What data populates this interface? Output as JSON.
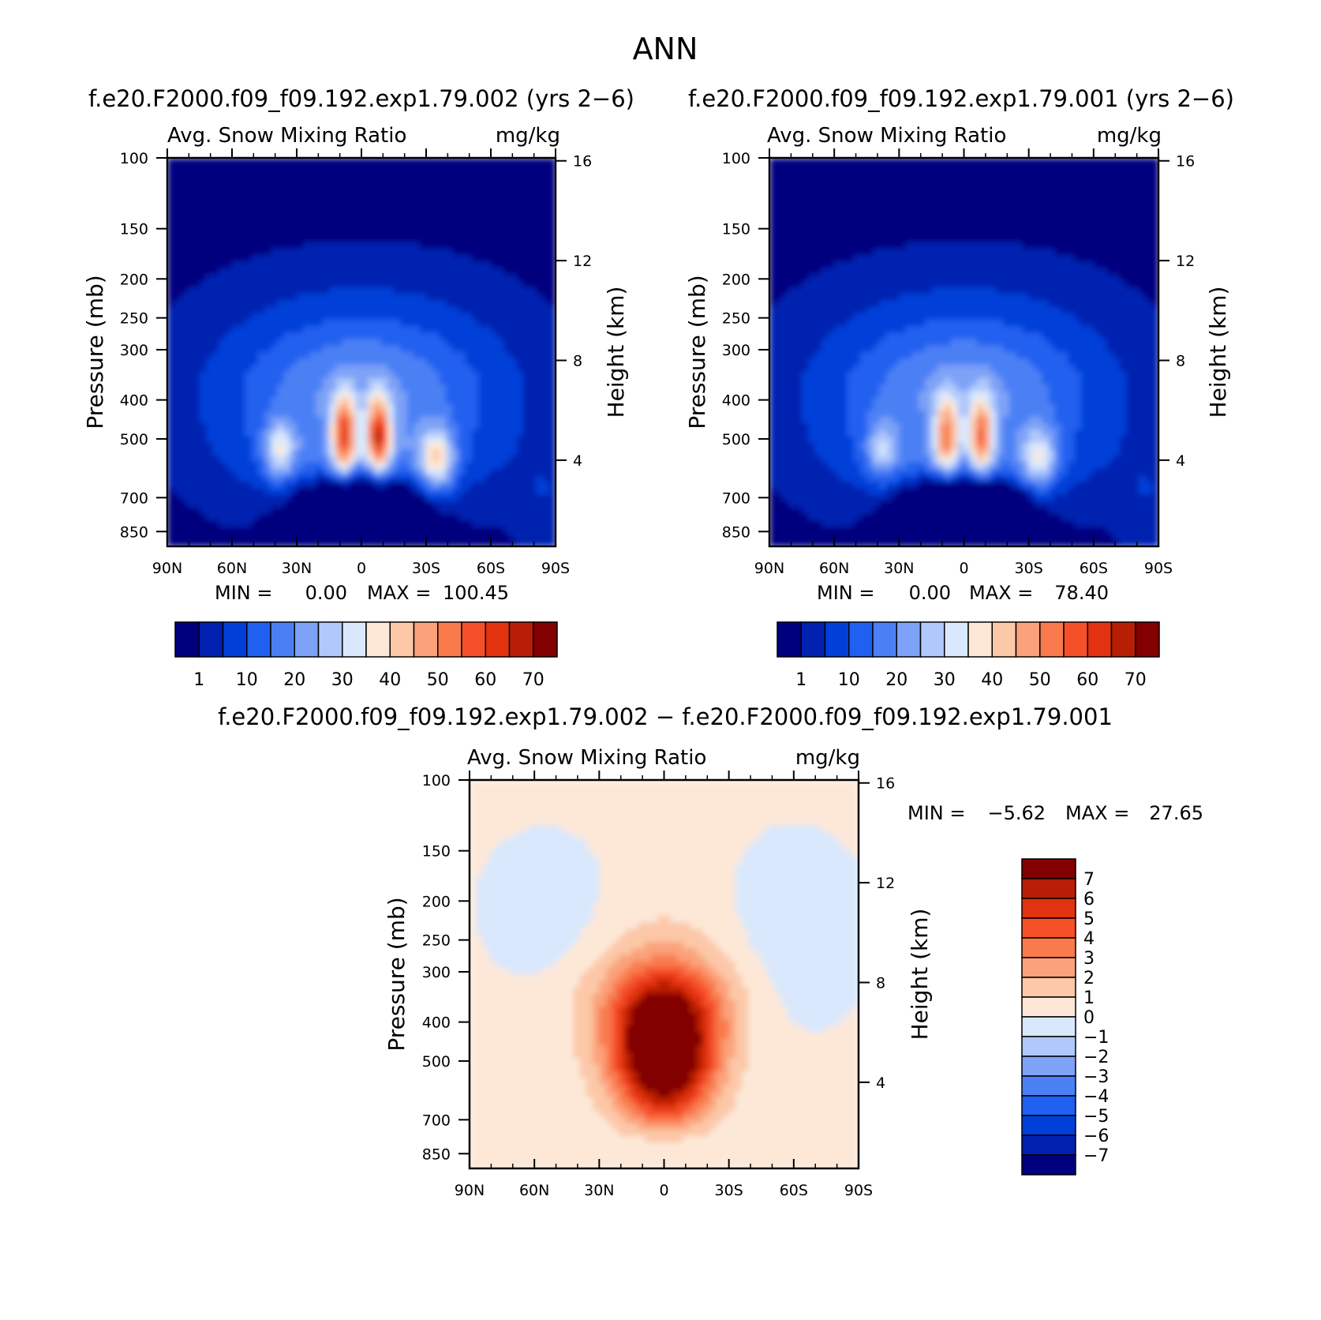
{
  "figure": {
    "title": "ANN"
  },
  "colors": {
    "blue_scale": [
      "#00007f",
      "#0020b0",
      "#0040d9",
      "#2060f0",
      "#4b80f5",
      "#7da2f7",
      "#b0c8fb",
      "#d9e8fd"
    ],
    "red_scale": [
      "#fde8d8",
      "#fcc8a8",
      "#fba27a",
      "#f97a4d",
      "#f5502a",
      "#e23210",
      "#b81e06",
      "#820000"
    ],
    "diff_blue": [
      "#00007f",
      "#0020b0",
      "#0040d9",
      "#2060f0",
      "#4b80f5",
      "#7da2f7",
      "#b0c8fb",
      "#d9e8fd"
    ],
    "diff_red": [
      "#fde8d8",
      "#fcc8a8",
      "#fba27a",
      "#f97a4d",
      "#f5502a",
      "#e23210",
      "#b81e06",
      "#820000"
    ]
  },
  "chart_data": [
    {
      "id": "panel1",
      "type": "heatmap",
      "title": "f.e20.F2000.f09_f09.192.exp1.79.002 (yrs 2−6)",
      "variable": "Avg. Snow Mixing Ratio",
      "units": "mg/kg",
      "ylabel": "Pressure (mb)",
      "y2label": "Height (km)",
      "x_ticks": [
        "90N",
        "60N",
        "30N",
        "0",
        "30S",
        "60S",
        "90S"
      ],
      "x_range": [
        90,
        -90
      ],
      "y_ticks": [
        "100",
        "150",
        "200",
        "250",
        "300",
        "400",
        "500",
        "700",
        "850"
      ],
      "y2_ticks": [
        "16",
        "12",
        "8",
        "4"
      ],
      "min_label": "MIN =",
      "min_value": "0.00",
      "max_label": "MAX =",
      "max_value": "100.45",
      "colorbar_labels": [
        "1",
        "10",
        "20",
        "30",
        "40",
        "50",
        "60",
        "70"
      ],
      "amp": 1.0
    },
    {
      "id": "panel2",
      "type": "heatmap",
      "title": "f.e20.F2000.f09_f09.192.exp1.79.001 (yrs 2−6)",
      "variable": "Avg. Snow Mixing Ratio",
      "units": "mg/kg",
      "ylabel": "Pressure (mb)",
      "y2label": "Height (km)",
      "x_ticks": [
        "90N",
        "60N",
        "30N",
        "0",
        "30S",
        "60S",
        "90S"
      ],
      "x_range": [
        90,
        -90
      ],
      "y_ticks": [
        "100",
        "150",
        "200",
        "250",
        "300",
        "400",
        "500",
        "700",
        "850"
      ],
      "y2_ticks": [
        "16",
        "12",
        "8",
        "4"
      ],
      "min_label": "MIN =",
      "min_value": "0.00",
      "max_label": "MAX =",
      "max_value": "78.40",
      "colorbar_labels": [
        "1",
        "10",
        "20",
        "30",
        "40",
        "50",
        "60",
        "70"
      ],
      "amp": 0.78
    },
    {
      "id": "panel3",
      "type": "heatmap",
      "title": "f.e20.F2000.f09_f09.192.exp1.79.002 − f.e20.F2000.f09_f09.192.exp1.79.001",
      "variable": "Avg. Snow Mixing Ratio",
      "units": "mg/kg",
      "ylabel": "Pressure (mb)",
      "y2label": "Height (km)",
      "x_ticks": [
        "90N",
        "60N",
        "30N",
        "0",
        "30S",
        "60S",
        "90S"
      ],
      "x_range": [
        90,
        -90
      ],
      "y_ticks": [
        "100",
        "150",
        "200",
        "250",
        "300",
        "400",
        "500",
        "700",
        "850"
      ],
      "y2_ticks": [
        "16",
        "12",
        "8",
        "4"
      ],
      "min_label": "MIN =",
      "min_value": "−5.62",
      "max_label": "MAX =",
      "max_value": "27.65",
      "colorbar_labels": [
        "7",
        "6",
        "5",
        "4",
        "3",
        "2",
        "1",
        "0",
        "−1",
        "−2",
        "−3",
        "−4",
        "−5",
        "−6",
        "−7"
      ]
    }
  ]
}
